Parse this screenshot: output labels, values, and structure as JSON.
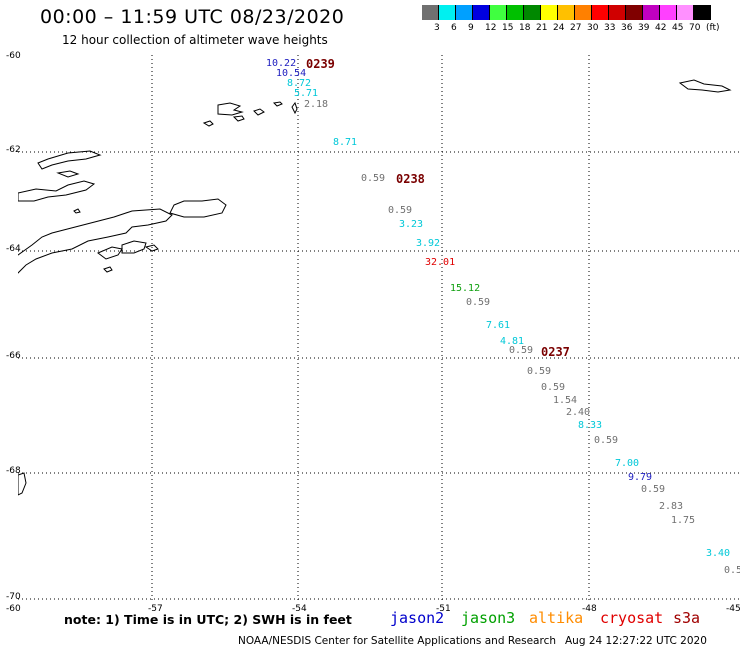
{
  "header": {
    "title": "00:00 – 11:59 UTC 08/23/2020",
    "subtitle": "12 hour collection of altimeter wave heights"
  },
  "legend": {
    "swatches": [
      "#707070",
      "#00f0f0",
      "#00a0ff",
      "#0000e0",
      "#40ff40",
      "#00c000",
      "#008800",
      "#ffff00",
      "#ffc000",
      "#ff8000",
      "#ff0000",
      "#d00000",
      "#800000",
      "#c000c0",
      "#ff40ff",
      "#ff90ff",
      "#000000"
    ],
    "labels": [
      "3",
      "6",
      "9",
      "12",
      "15",
      "18",
      "21",
      "24",
      "27",
      "30",
      "33",
      "36",
      "39",
      "42",
      "45",
      "70",
      "(ft)"
    ]
  },
  "map": {
    "lat_labels": [
      "-60",
      "-62",
      "-64",
      "-66",
      "-68",
      "-70"
    ],
    "lon_labels": [
      "-60",
      "-57",
      "-54",
      "-51",
      "-48",
      "-45"
    ],
    "passes": [
      "0239",
      "0238",
      "0237"
    ],
    "wave_heights": [
      {
        "text": "10.22",
        "color": "#2020c0"
      },
      {
        "text": "10.54",
        "color": "#2020c0"
      },
      {
        "text": "8.72",
        "color": "#00c8d8"
      },
      {
        "text": "5.71",
        "color": "#00c8d8"
      },
      {
        "text": "2.18",
        "color": "#707070"
      },
      {
        "text": "8.71",
        "color": "#00c8d8"
      },
      {
        "text": "0.59",
        "color": "#707070"
      },
      {
        "text": "0.59",
        "color": "#707070"
      },
      {
        "text": "3.23",
        "color": "#00c8d8"
      },
      {
        "text": "3.92",
        "color": "#00c8d8"
      },
      {
        "text": "32.01",
        "color": "#e00000"
      },
      {
        "text": "15.12",
        "color": "#10a010"
      },
      {
        "text": "0.59",
        "color": "#707070"
      },
      {
        "text": "7.61",
        "color": "#00c8d8"
      },
      {
        "text": "4.81",
        "color": "#00c8d8"
      },
      {
        "text": "0.59",
        "color": "#707070"
      },
      {
        "text": "0.59",
        "color": "#707070"
      },
      {
        "text": "0.59",
        "color": "#707070"
      },
      {
        "text": "1.54",
        "color": "#707070"
      },
      {
        "text": "2.40",
        "color": "#707070"
      },
      {
        "text": "8.33",
        "color": "#00c8d8"
      },
      {
        "text": "0.59",
        "color": "#707070"
      },
      {
        "text": "7.00",
        "color": "#00c8d8"
      },
      {
        "text": "9.79",
        "color": "#2020c0"
      },
      {
        "text": "0.59",
        "color": "#707070"
      },
      {
        "text": "2.83",
        "color": "#707070"
      },
      {
        "text": "1.75",
        "color": "#707070"
      },
      {
        "text": "3.40",
        "color": "#00c8d8"
      },
      {
        "text": "0.5",
        "color": "#707070"
      }
    ]
  },
  "footer": {
    "note": "note: 1) Time is in UTC; 2) SWH is in feet",
    "satellites": [
      {
        "name": "jason2",
        "color": "#0000cc"
      },
      {
        "name": "jason3",
        "color": "#00a000"
      },
      {
        "name": "altika",
        "color": "#ff8c00"
      },
      {
        "name": "cryosat",
        "color": "#e00000"
      },
      {
        "name": "s3a",
        "color": "#a00000"
      }
    ],
    "credit": "NOAA/NESDIS Center for Satellite Applications and Research",
    "timestamp": "Aug 24 12:27:22 UTC 2020"
  }
}
